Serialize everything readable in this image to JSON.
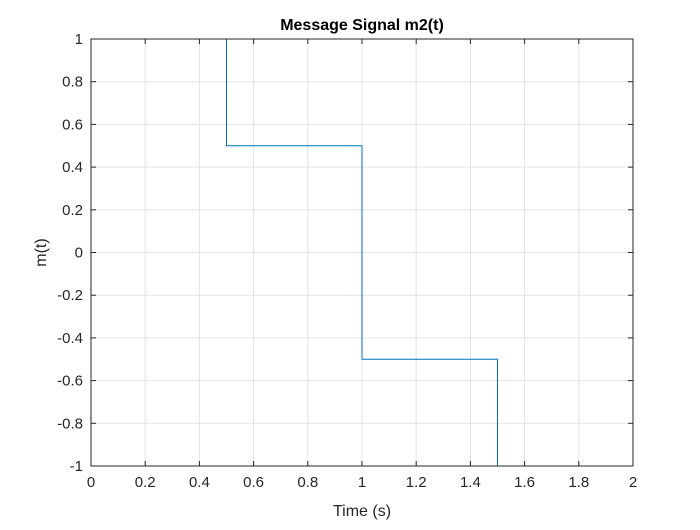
{
  "chart_data": {
    "type": "line",
    "title": "Message Signal m2(t)",
    "xlabel": "Time (s)",
    "ylabel": "m(t)",
    "xlim": [
      0,
      2
    ],
    "ylim": [
      -1,
      1
    ],
    "grid": true,
    "xticks": [
      0,
      0.2,
      0.4,
      0.6,
      0.8,
      1,
      1.2,
      1.4,
      1.6,
      1.8,
      2
    ],
    "xtick_labels": [
      "0",
      "0.2",
      "0.4",
      "0.6",
      "0.8",
      "1",
      "1.2",
      "1.4",
      "1.6",
      "1.8",
      "2"
    ],
    "yticks": [
      -1,
      -0.8,
      -0.6,
      -0.4,
      -0.2,
      0,
      0.2,
      0.4,
      0.6,
      0.8,
      1
    ],
    "ytick_labels": [
      "-1",
      "-0.8",
      "-0.6",
      "-0.4",
      "-0.2",
      "0",
      "0.2",
      "0.4",
      "0.6",
      "0.8",
      "1"
    ],
    "series": [
      {
        "color": "#0072BD",
        "x": [
          0,
          0,
          0.5,
          0.5,
          1,
          1,
          1.5,
          1.5,
          2,
          2
        ],
        "y": [
          0,
          1,
          1,
          0.5,
          0.5,
          -0.5,
          -0.5,
          -1,
          -1,
          0
        ]
      }
    ]
  }
}
